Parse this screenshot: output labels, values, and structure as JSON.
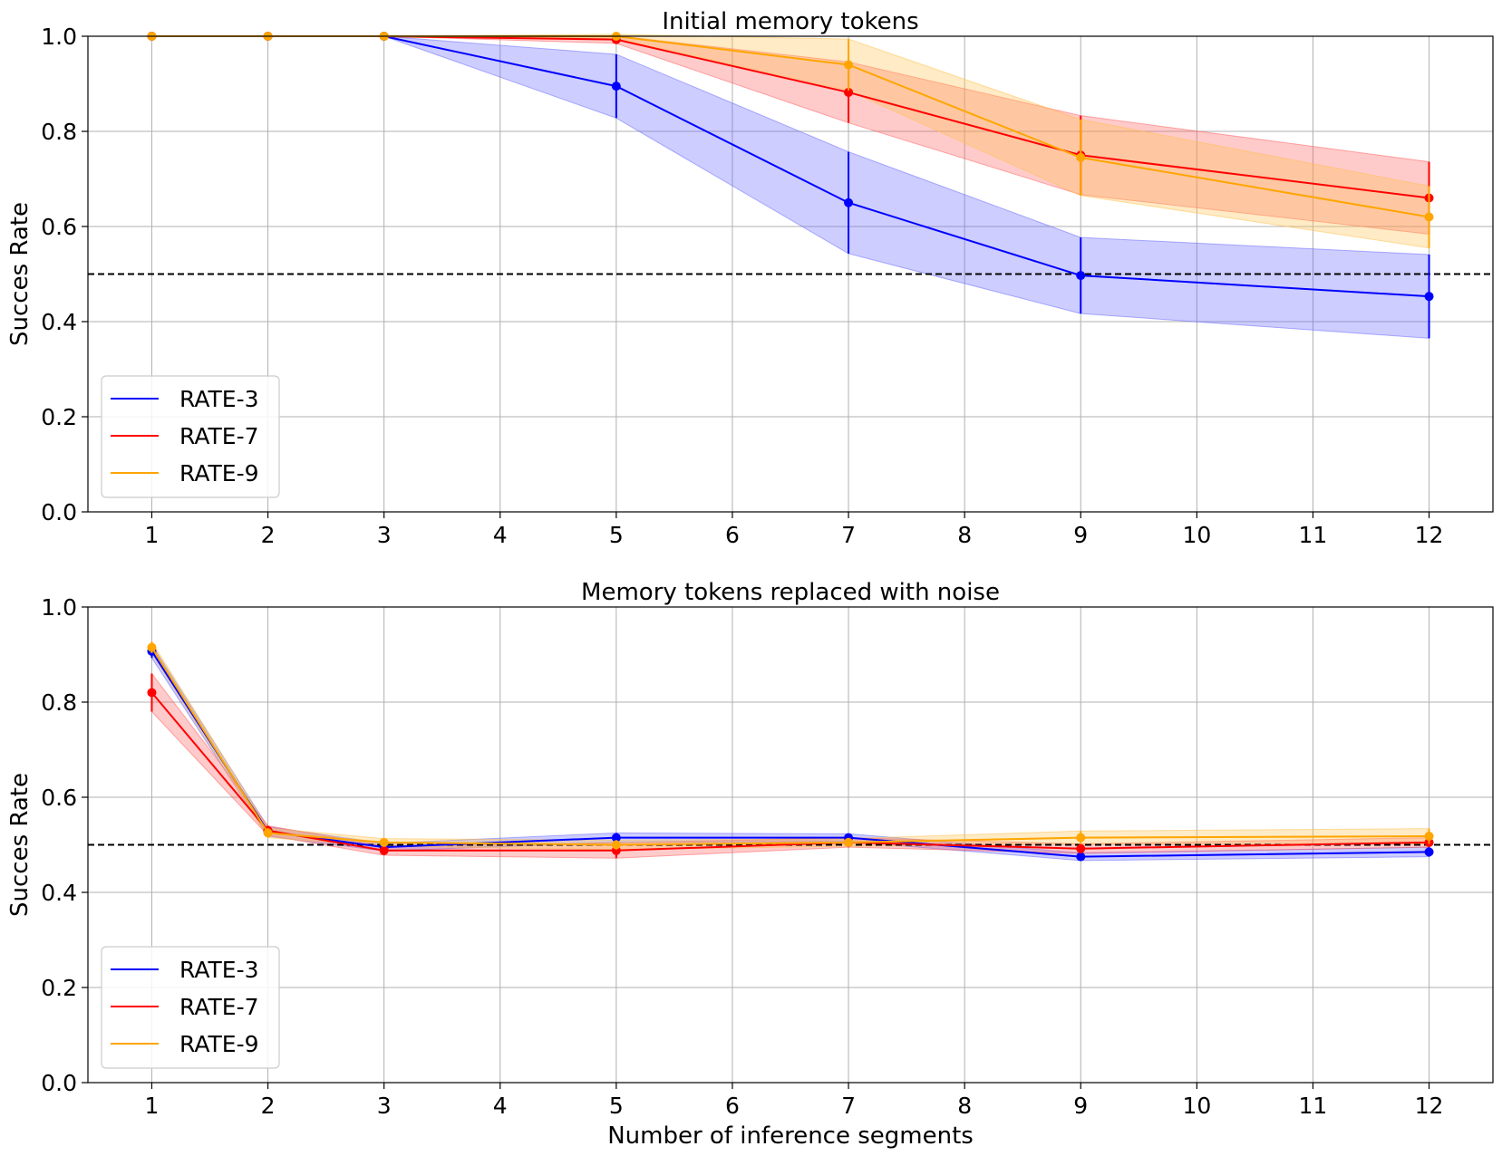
{
  "chart_data": [
    {
      "type": "line",
      "title": "Initial memory tokens",
      "xlabel": "",
      "ylabel": "Succes Rate",
      "ylim": [
        0,
        1
      ],
      "yticks": [
        "0.0",
        "0.2",
        "0.4",
        "0.6",
        "0.8",
        "1.0"
      ],
      "xticks": [
        "1",
        "2",
        "3",
        "4",
        "5",
        "6",
        "7",
        "8",
        "9",
        "10",
        "11",
        "12"
      ],
      "grid": true,
      "reference_line": 0.5,
      "legend_position": "bottom-left",
      "x": [
        1,
        2,
        3,
        5,
        7,
        9,
        12
      ],
      "series": [
        {
          "name": "RATE-3",
          "color": "#0000ff",
          "fill": "#6464ff",
          "values": [
            1.0,
            1.0,
            1.0,
            0.895,
            0.65,
            0.497,
            0.453
          ],
          "err": [
            0.0,
            0.0,
            0.0,
            0.067,
            0.107,
            0.08,
            0.088
          ]
        },
        {
          "name": "RATE-7",
          "color": "#ff0000",
          "fill": "#ff5a5a",
          "values": [
            1.0,
            1.0,
            1.0,
            0.993,
            0.882,
            0.75,
            0.66
          ],
          "err": [
            0.0,
            0.0,
            0.0,
            0.008,
            0.064,
            0.083,
            0.076
          ]
        },
        {
          "name": "RATE-9",
          "color": "#ffa500",
          "fill": "#ffc04a",
          "values": [
            1.0,
            1.0,
            1.0,
            1.0,
            0.94,
            0.745,
            0.62
          ],
          "err": [
            0.0,
            0.0,
            0.0,
            0.004,
            0.054,
            0.08,
            0.065
          ]
        }
      ]
    },
    {
      "type": "line",
      "title": "Memory tokens replaced with noise",
      "xlabel": "Number of inference segments",
      "ylabel": "Succes Rate",
      "ylim": [
        0,
        1
      ],
      "yticks": [
        "0.0",
        "0.2",
        "0.4",
        "0.6",
        "0.8",
        "1.0"
      ],
      "xticks": [
        "1",
        "2",
        "3",
        "4",
        "5",
        "6",
        "7",
        "8",
        "9",
        "10",
        "11",
        "12"
      ],
      "grid": true,
      "reference_line": 0.5,
      "legend_position": "bottom-left",
      "x": [
        1,
        2,
        3,
        5,
        7,
        9,
        12
      ],
      "series": [
        {
          "name": "RATE-3",
          "color": "#0000ff",
          "fill": "#6464ff",
          "values": [
            0.907,
            0.528,
            0.495,
            0.515,
            0.515,
            0.475,
            0.485
          ],
          "err": [
            0.014,
            0.01,
            0.008,
            0.01,
            0.008,
            0.008,
            0.01
          ]
        },
        {
          "name": "RATE-7",
          "color": "#ff0000",
          "fill": "#ff5a5a",
          "values": [
            0.82,
            0.53,
            0.488,
            0.488,
            0.505,
            0.492,
            0.505
          ],
          "err": [
            0.04,
            0.01,
            0.01,
            0.016,
            0.01,
            0.01,
            0.01
          ]
        },
        {
          "name": "RATE-9",
          "color": "#ffa500",
          "fill": "#ffc04a",
          "values": [
            0.915,
            0.525,
            0.505,
            0.5,
            0.505,
            0.515,
            0.518
          ],
          "err": [
            0.012,
            0.01,
            0.008,
            0.01,
            0.008,
            0.014,
            0.016
          ]
        }
      ]
    }
  ]
}
